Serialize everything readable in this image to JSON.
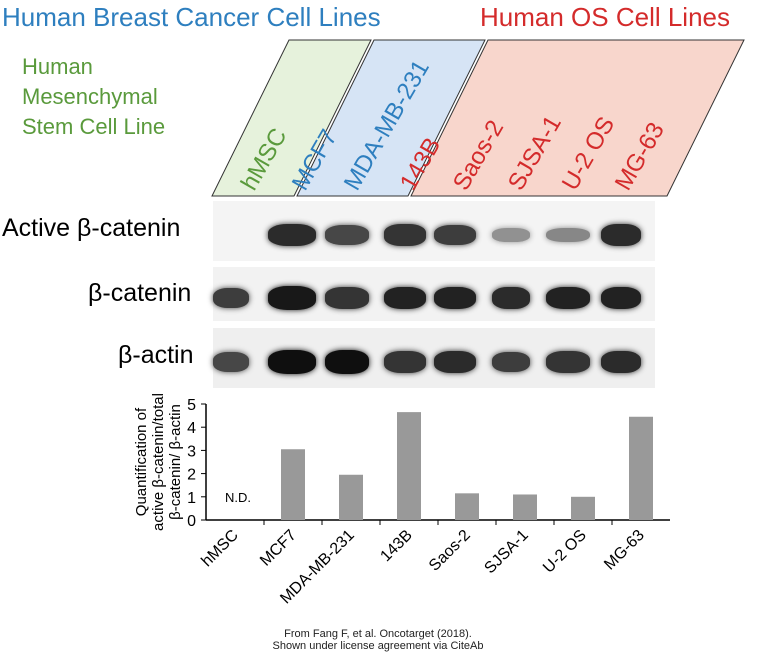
{
  "headers": {
    "breast": {
      "text": "Human Breast Cancer Cell Lines",
      "color": "#2e7fbf"
    },
    "os": {
      "text": "Human OS Cell Lines",
      "color": "#d42b2b"
    },
    "msc_lines": [
      "Human",
      "Mesenchymal",
      "Stem Cell Line"
    ],
    "msc_color": "#5a9a3c"
  },
  "lanes": [
    {
      "name": "hMSC",
      "color": "#5a9a3c"
    },
    {
      "name": "MCF7",
      "color": "#2e7fbf"
    },
    {
      "name": "MDA-MB-231",
      "color": "#2e7fbf"
    },
    {
      "name": "143B",
      "color": "#d42b2b"
    },
    {
      "name": "Saos-2",
      "color": "#d42b2b"
    },
    {
      "name": "SJSA-1",
      "color": "#d42b2b"
    },
    {
      "name": "U-2 OS",
      "color": "#d42b2b"
    },
    {
      "name": "MG-63",
      "color": "#d42b2b"
    }
  ],
  "parallelograms": [
    {
      "fill": "#e6f2dc",
      "stroke": "#5a9a3c"
    },
    {
      "fill": "#d6e4f5",
      "stroke": "#2e7fbf"
    },
    {
      "fill": "#f8d6cc",
      "stroke": "#d42b2b"
    }
  ],
  "blot_rows": [
    {
      "label": "Active β-catenin",
      "intensity": [
        0,
        0.85,
        0.7,
        0.8,
        0.75,
        0.3,
        0.35,
        0.85
      ]
    },
    {
      "label": "β-catenin",
      "intensity": [
        0.75,
        0.95,
        0.8,
        0.9,
        0.9,
        0.85,
        0.9,
        0.9
      ]
    },
    {
      "label": "β-actin",
      "intensity": [
        0.7,
        1.0,
        1.0,
        0.8,
        0.85,
        0.75,
        0.8,
        0.85
      ]
    }
  ],
  "chart_data": {
    "type": "bar",
    "categories": [
      "hMSC",
      "MCF7",
      "MDA-MB-231",
      "143B",
      "Saos-2",
      "SJSA-1",
      "U-2 OS",
      "MG-63"
    ],
    "values": [
      null,
      3.05,
      1.95,
      4.65,
      1.15,
      1.1,
      1.0,
      4.45
    ],
    "ylabel": "Quantification of active β-catenin/total β-catenin/ β-actin",
    "ylabel_lines": [
      "Quantification of",
      "active β-catenin/total",
      "β-catenin/ β-actin"
    ],
    "ylim": [
      0,
      5
    ],
    "yticks": [
      0,
      1,
      2,
      3,
      4,
      5
    ],
    "annotation": "N.D.",
    "bar_color": "#999999",
    "grid": false
  },
  "credit": {
    "line1": "From Fang F, et al. Oncotarget (2018).",
    "line2": "Shown under license agreement via CiteAb"
  }
}
